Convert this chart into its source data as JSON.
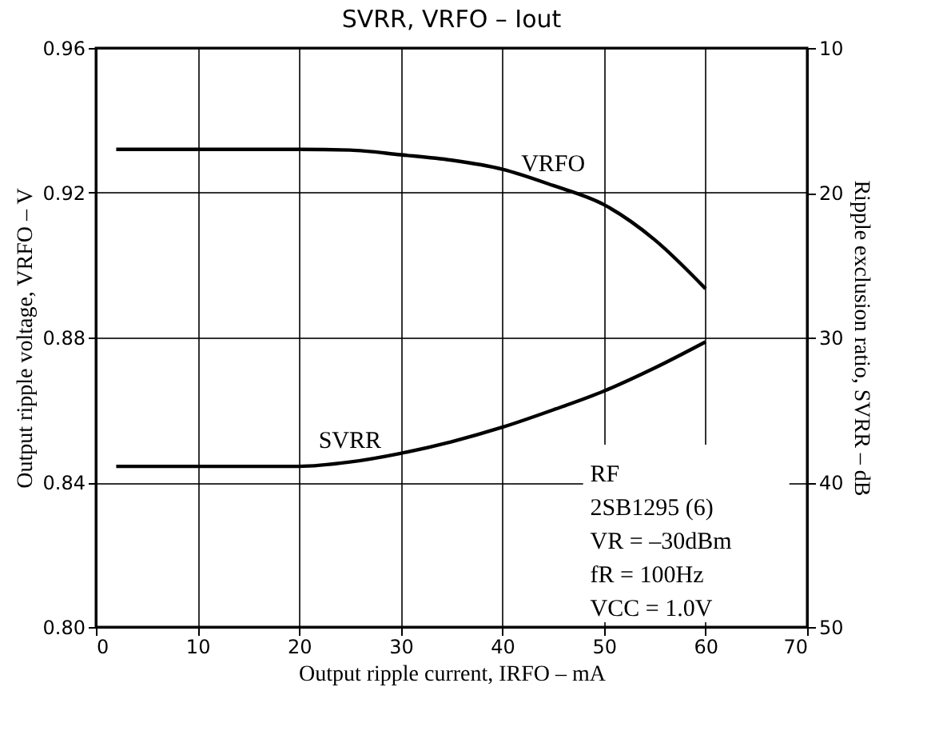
{
  "chart_data": {
    "type": "line",
    "title": "SVRR, VRFO – Iout",
    "xlabel": "Output ripple current, IRFO – mA",
    "ylabel": "Output ripple voltage, VRFO – V",
    "y2label": "Ripple exclusion ratio, SVRR – dB",
    "x": [
      2,
      10,
      20,
      25,
      30,
      35,
      40,
      45,
      50,
      55,
      60
    ],
    "series": [
      {
        "name": "VRFO",
        "color": "#000000",
        "values": [
          0.932,
          0.932,
          0.932,
          0.9318,
          0.9305,
          0.929,
          0.9265,
          0.922,
          0.9167,
          0.907,
          0.8935
        ]
      },
      {
        "name": "SVRR",
        "color": "#000000",
        "axis": "y2",
        "values": [
          38.9,
          38.9,
          38.9,
          38.6,
          38.0,
          37.2,
          36.2,
          35.0,
          33.7,
          32.1,
          30.3
        ]
      }
    ],
    "xlim": [
      0,
      70
    ],
    "xticks": [
      0,
      10,
      20,
      30,
      40,
      50,
      60,
      70
    ],
    "ylim": [
      0.8,
      0.96
    ],
    "yticks": [
      {
        "value": 0.8,
        "label": "0.80"
      },
      0.84,
      0.88,
      0.92,
      0.96
    ],
    "y2lim": [
      50,
      10
    ],
    "y2ticks": [
      10,
      20,
      30,
      40,
      50
    ],
    "annotations": [
      "RF",
      "2SB1295 (6)",
      "VR = –30dBm",
      "fR = 100Hz",
      "VCC = 1.0V"
    ],
    "grid": true,
    "marker": "none",
    "line_style": "solid"
  }
}
